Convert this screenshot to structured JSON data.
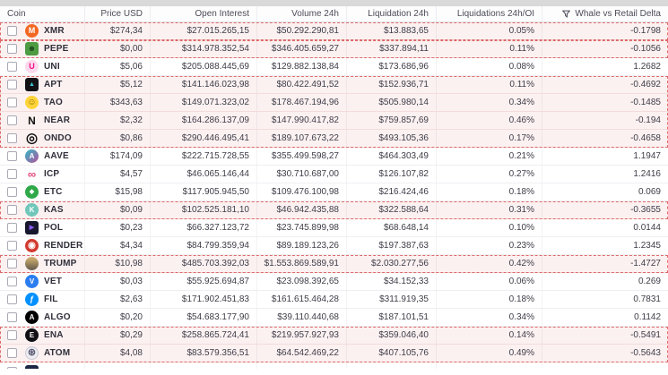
{
  "colors": {
    "alert_bg": "#fcf1f1",
    "alert_border": "#dd6a6a",
    "top_strip": "#d9d9d9",
    "header_text": "#4c4c58",
    "value_text": "#3d3d48"
  },
  "table": {
    "columns": [
      {
        "id": "coin",
        "label": "Coin",
        "align": "left"
      },
      {
        "id": "price",
        "label": "Price USD",
        "align": "right"
      },
      {
        "id": "open_interest",
        "label": "Open Interest",
        "align": "right"
      },
      {
        "id": "volume",
        "label": "Volume 24h",
        "align": "right"
      },
      {
        "id": "liquidation",
        "label": "Liquidation 24h",
        "align": "right"
      },
      {
        "id": "liq_oi",
        "label": "Liquidations 24h/OI",
        "align": "right"
      },
      {
        "id": "delta",
        "label": "Whale vs Retail Delta",
        "align": "right",
        "filter_icon": "filter-funnel-icon"
      }
    ],
    "rows": [
      {
        "name": "XMR",
        "price": "$274,34",
        "open_interest": "$27.015.265,15",
        "volume": "$50.292.290,81",
        "liquidation": "$13.883,65",
        "liq_oi": "0.05%",
        "delta": "-0.1798",
        "alert_group": 1,
        "icon": {
          "shape": "circle",
          "bg": "#f26822",
          "fg": "#ffffff",
          "glyph": "M",
          "size": 9
        }
      },
      {
        "name": "PEPE",
        "price": "$0,00",
        "open_interest": "$314.978.352,54",
        "volume": "$346.405.659,27",
        "liquidation": "$337.894,11",
        "liq_oi": "0.11%",
        "delta": "-0.1056",
        "alert_group": 2,
        "icon": {
          "shape": "square",
          "bg": "#4e9b43",
          "fg": "#1e4d1e",
          "glyph": "☻",
          "size": 9
        }
      },
      {
        "name": "UNI",
        "price": "$5,06",
        "open_interest": "$205.088.445,69",
        "volume": "$129.882.138,84",
        "liquidation": "$173.686,96",
        "liq_oi": "0.08%",
        "delta": "1.2682",
        "alert_group": null,
        "icon": {
          "shape": "circle",
          "bg": "#fbd9ec",
          "fg": "#f50d8a",
          "glyph": "U",
          "size": 9
        }
      },
      {
        "name": "APT",
        "price": "$5,12",
        "open_interest": "$141.146.023,98",
        "volume": "$80.422.491,52",
        "liquidation": "$152.936,71",
        "liq_oi": "0.11%",
        "delta": "-0.4692",
        "alert_group": 3,
        "icon": {
          "shape": "square",
          "bg": "#121216",
          "fg": "#3ec6d4",
          "glyph": "▲",
          "size": 7
        }
      },
      {
        "name": "TAO",
        "price": "$343,63",
        "open_interest": "$149.071.323,02",
        "volume": "$178.467.194,96",
        "liquidation": "$505.980,14",
        "liq_oi": "0.34%",
        "delta": "-0.1485",
        "alert_group": 3,
        "icon": {
          "shape": "circle",
          "bg": "#ffd43a",
          "fg": "#8a6400",
          "glyph": "☺",
          "size": 10
        }
      },
      {
        "name": "NEAR",
        "price": "$2,32",
        "open_interest": "$164.286.137,09",
        "volume": "$147.990.417,82",
        "liquidation": "$759.857,69",
        "liq_oi": "0.46%",
        "delta": "-0.194",
        "alert_group": 3,
        "icon": {
          "shape": "plain",
          "bg": "transparent",
          "fg": "#111111",
          "glyph": "N",
          "size": 12
        }
      },
      {
        "name": "ONDO",
        "price": "$0,86",
        "open_interest": "$290.446.495,41",
        "volume": "$189.107.673,22",
        "liquidation": "$493.105,36",
        "liq_oi": "0.17%",
        "delta": "-0.4658",
        "alert_group": 3,
        "icon": {
          "shape": "plain",
          "bg": "transparent",
          "fg": "#111111",
          "glyph": "◎",
          "size": 15
        }
      },
      {
        "name": "AAVE",
        "price": "$174,09",
        "open_interest": "$222.715.728,55",
        "volume": "$355.499.598,27",
        "liquidation": "$464.303,49",
        "liq_oi": "0.21%",
        "delta": "1.1947",
        "alert_group": null,
        "icon": {
          "shape": "circle",
          "bg": "linear-gradient(135deg,#2ebac6,#b6509e)",
          "fg": "#ffffff",
          "glyph": "A",
          "size": 8
        }
      },
      {
        "name": "ICP",
        "price": "$4,57",
        "open_interest": "$46.065.146,44",
        "volume": "$30.710.687,00",
        "liquidation": "$126.107,82",
        "liq_oi": "0.27%",
        "delta": "1.2416",
        "alert_group": null,
        "icon": {
          "shape": "plain",
          "bg": "transparent",
          "fg": "#e1467c",
          "glyph": "∞",
          "size": 13
        }
      },
      {
        "name": "ETC",
        "price": "$15,98",
        "open_interest": "$117.905.945,50",
        "volume": "$109.476.100,98",
        "liquidation": "$216.424,46",
        "liq_oi": "0.18%",
        "delta": "0.069",
        "alert_group": null,
        "icon": {
          "shape": "circle",
          "bg": "#2fa848",
          "fg": "#ffffff",
          "glyph": "◆",
          "size": 7
        }
      },
      {
        "name": "KAS",
        "price": "$0,09",
        "open_interest": "$102.525.181,10",
        "volume": "$46.942.435,88",
        "liquidation": "$322.588,64",
        "liq_oi": "0.31%",
        "delta": "-0.3655",
        "alert_group": 4,
        "icon": {
          "shape": "circle",
          "bg": "#70c7ba",
          "fg": "#ffffff",
          "glyph": "K",
          "size": 8
        }
      },
      {
        "name": "POL",
        "price": "$0,23",
        "open_interest": "$66.327.123,72",
        "volume": "$23.745.899,98",
        "liquidation": "$68.648,14",
        "liq_oi": "0.10%",
        "delta": "0.0144",
        "alert_group": null,
        "icon": {
          "shape": "square",
          "bg": "#17172e",
          "fg": "#8b5cf6",
          "glyph": "▶",
          "size": 7
        }
      },
      {
        "name": "RENDER",
        "price": "$4,34",
        "open_interest": "$84.799.359,94",
        "volume": "$89.189.123,26",
        "liquidation": "$197.387,63",
        "liq_oi": "0.23%",
        "delta": "1.2345",
        "alert_group": null,
        "icon": {
          "shape": "circle",
          "bg": "#d23a2e",
          "fg": "#ffffff",
          "glyph": "◉",
          "size": 10
        }
      },
      {
        "name": "TRUMP",
        "price": "$10,98",
        "open_interest": "$485.703.392,03",
        "volume": "$1.553.869.589,91",
        "liquidation": "$2.030.277,56",
        "liq_oi": "0.42%",
        "delta": "-1.4727",
        "alert_group": 5,
        "icon": {
          "shape": "circle",
          "bg": "linear-gradient(180deg,#d8b56f,#62584e)",
          "fg": "#ffffff",
          "glyph": "",
          "size": 8
        }
      },
      {
        "name": "VET",
        "price": "$0,03",
        "open_interest": "$55.925.694,87",
        "volume": "$23.098.392,65",
        "liquidation": "$34.152,33",
        "liq_oi": "0.06%",
        "delta": "0.269",
        "alert_group": null,
        "icon": {
          "shape": "circle",
          "bg": "#2b7df0",
          "fg": "#ffffff",
          "glyph": "V",
          "size": 8
        }
      },
      {
        "name": "FIL",
        "price": "$2,63",
        "open_interest": "$171.902.451,83",
        "volume": "$161.615.464,28",
        "liquidation": "$311.919,35",
        "liq_oi": "0.18%",
        "delta": "0.7831",
        "alert_group": null,
        "icon": {
          "shape": "circle",
          "bg": "#0090ff",
          "fg": "#ffffff",
          "glyph": "ƒ",
          "size": 9
        }
      },
      {
        "name": "ALGO",
        "price": "$0,20",
        "open_interest": "$54.683.177,90",
        "volume": "$39.110.440,68",
        "liquidation": "$187.101,51",
        "liq_oi": "0.34%",
        "delta": "0.1142",
        "alert_group": null,
        "icon": {
          "shape": "circle",
          "bg": "#000000",
          "fg": "#ffffff",
          "glyph": "A",
          "size": 8
        }
      },
      {
        "name": "ENA",
        "price": "$0,29",
        "open_interest": "$258.865.724,41",
        "volume": "$219.957.927,93",
        "liquidation": "$359.046,40",
        "liq_oi": "0.14%",
        "delta": "-0.5491",
        "alert_group": 6,
        "icon": {
          "shape": "circle",
          "bg": "#101015",
          "fg": "#ffffff",
          "glyph": "E",
          "size": 8
        }
      },
      {
        "name": "ATOM",
        "price": "$4,08",
        "open_interest": "$83.579.356,51",
        "volume": "$64.542.469,22",
        "liquidation": "$407.105,76",
        "liq_oi": "0.49%",
        "delta": "-0.5643",
        "alert_group": 6,
        "icon": {
          "shape": "circle",
          "bg": "#ececf2",
          "fg": "#5c5c74",
          "glyph": "⊛",
          "size": 11,
          "border": "#c8c8d6"
        }
      }
    ],
    "partial_row": {
      "present": true,
      "icon": {
        "shape": "square",
        "bg": "#1b2744",
        "fg": "#ffffff",
        "glyph": "",
        "size": 7
      },
      "fragment_widths": {
        "name": 24,
        "price": 28,
        "open_interest": 80,
        "volume": 72,
        "liquidation": 56,
        "liq_oi": 28,
        "delta": 34
      }
    }
  }
}
